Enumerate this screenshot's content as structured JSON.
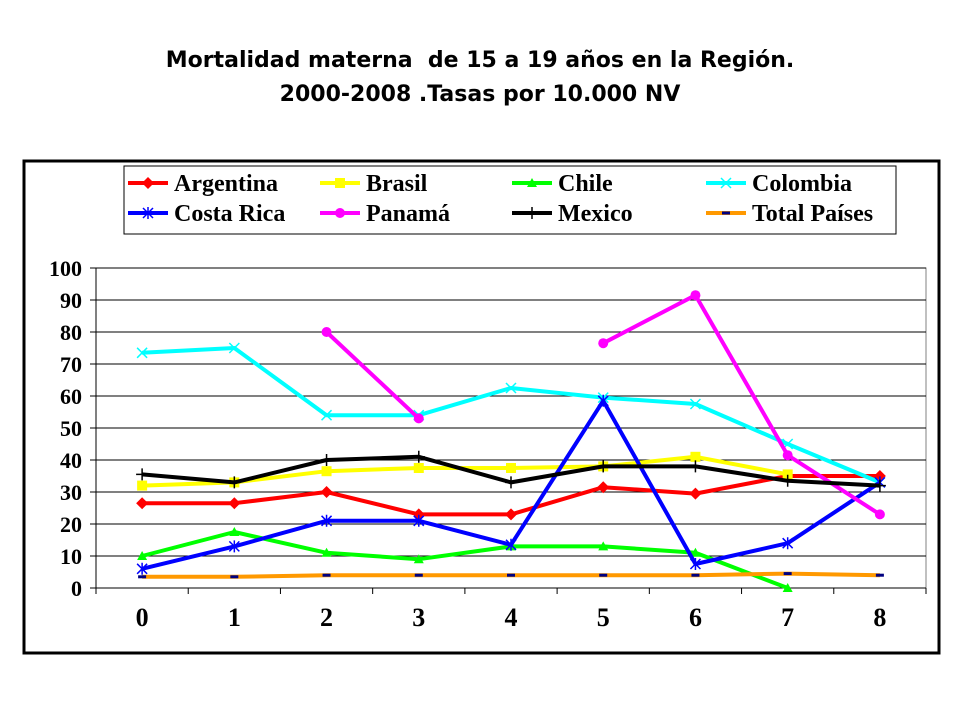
{
  "title_line1": "Mortalidad materna  de 15 a 19 años en la Región.",
  "title_line2": "2000-2008 .Tasas por 10.000 NV",
  "chart_data": {
    "type": "line",
    "x": [
      0,
      1,
      2,
      3,
      4,
      5,
      6,
      7,
      8
    ],
    "xlabel": "",
    "ylabel": "",
    "ylim": [
      0,
      100
    ],
    "yticks": [
      0,
      10,
      20,
      30,
      40,
      50,
      60,
      70,
      80,
      90,
      100
    ],
    "grid": "horizontal",
    "legend_position": "top",
    "series": [
      {
        "name": "Argentina",
        "color": "#ff0000",
        "marker": "diamond",
        "values": [
          26.5,
          26.5,
          30,
          23,
          23,
          31.5,
          29.5,
          35,
          35
        ]
      },
      {
        "name": "Brasil",
        "color": "#ffff00",
        "marker": "square",
        "values": [
          32,
          33,
          36.5,
          37.5,
          37.5,
          38,
          41,
          35.5,
          null
        ]
      },
      {
        "name": "Chile",
        "color": "#00ff00",
        "marker": "triangle",
        "values": [
          10,
          17.5,
          11,
          9,
          13,
          13,
          11,
          0,
          null
        ]
      },
      {
        "name": "Colombia",
        "color": "#00ffff",
        "marker": "x",
        "values": [
          73.5,
          75,
          54,
          54,
          62.5,
          59.5,
          57.5,
          45,
          33
        ]
      },
      {
        "name": "Costa Rica",
        "color": "#0000ff",
        "marker": "star",
        "values": [
          6,
          13,
          21,
          21,
          13.5,
          58.5,
          7.5,
          14,
          33
        ]
      },
      {
        "name": "Panamá",
        "color": "#ff00ff",
        "marker": "circle",
        "values": [
          null,
          null,
          80,
          53,
          null,
          76.5,
          91.5,
          41.5,
          23
        ]
      },
      {
        "name": "Mexico",
        "color": "#000000",
        "marker": "plus",
        "values": [
          35.5,
          33,
          40,
          41,
          33,
          38,
          38,
          33.5,
          32
        ]
      },
      {
        "name": "Total Países",
        "color": "#ff9900",
        "marker": "dash",
        "values": [
          3.5,
          3.5,
          4,
          4,
          4,
          4,
          4,
          4.5,
          4
        ]
      }
    ]
  }
}
